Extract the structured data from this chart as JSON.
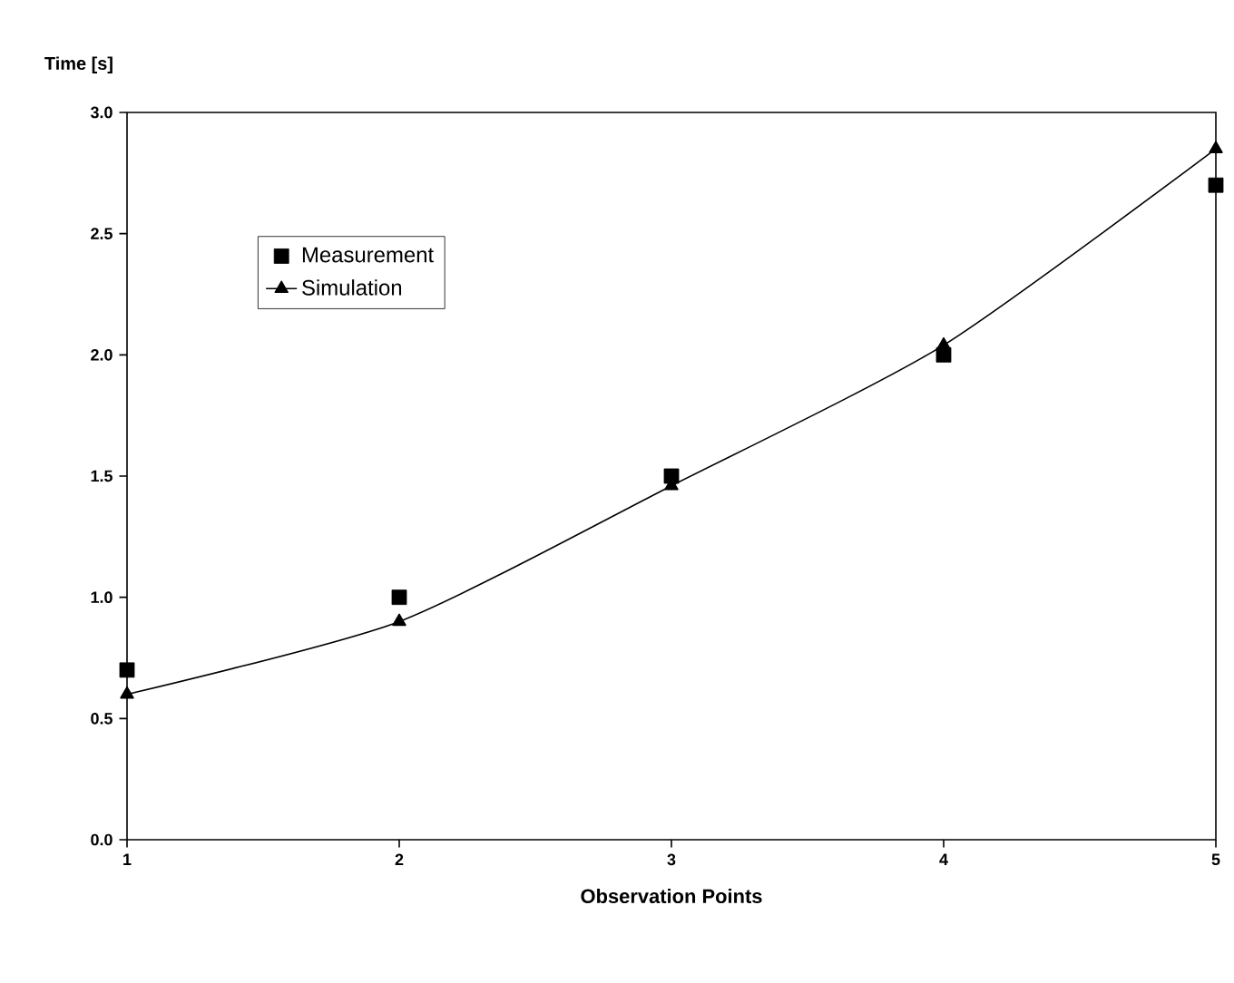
{
  "chart_data": {
    "type": "line",
    "xlabel": "Observation Points",
    "ylabel": "Time [s]",
    "x": [
      1,
      2,
      3,
      4,
      5
    ],
    "series": [
      {
        "name": "Measurement",
        "type": "scatter",
        "marker": "square",
        "color": "#000000",
        "values": [
          0.7,
          1.0,
          1.5,
          2.0,
          2.7
        ]
      },
      {
        "name": "Simulation",
        "marker": "triangle",
        "line_style": "solid",
        "color": "#000000",
        "values": [
          0.6,
          0.9,
          1.46,
          2.04,
          2.85
        ]
      }
    ],
    "xlim": [
      1,
      5
    ],
    "xticks": [
      1,
      2,
      3,
      4,
      5
    ],
    "ylim": [
      0,
      3
    ],
    "yticks": [
      {
        "value": 0,
        "label": "0.0"
      },
      {
        "value": 0.5,
        "label": "0.5"
      },
      {
        "value": 1,
        "label": "1.0"
      },
      {
        "value": 1.5,
        "label": "1.5"
      },
      {
        "value": 2,
        "label": "2.0"
      },
      {
        "value": 2.5,
        "label": "2.5"
      },
      {
        "value": 3,
        "label": "3.0"
      }
    ],
    "legend": "top left",
    "grid": false
  }
}
